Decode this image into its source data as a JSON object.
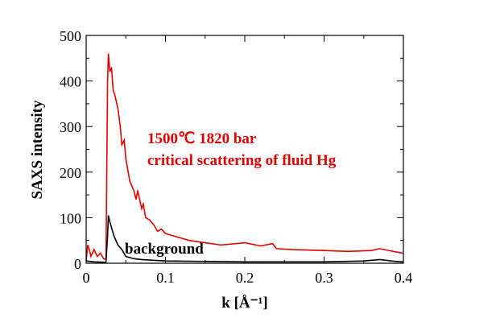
{
  "chart_data": {
    "type": "line",
    "title": "",
    "xlabel": "k [Å⁻¹]",
    "ylabel": "SAXS intensity",
    "xlim": [
      0,
      0.4
    ],
    "ylim": [
      0,
      500
    ],
    "xticks": [
      "0",
      "0.1",
      "0.2",
      "0.3",
      "0.4"
    ],
    "yticks": [
      "0",
      "100",
      "200",
      "300",
      "400",
      "500"
    ],
    "grid": false,
    "annotations": [
      {
        "text": "1500℃ 1820 bar",
        "color": "#e00000"
      },
      {
        "text": "critical scattering of fluid Hg",
        "color": "#e00000"
      },
      {
        "text": "background",
        "color": "#000000"
      }
    ],
    "series": [
      {
        "color": "#e00000",
        "x": [
          0,
          0.002,
          0.004,
          0.006,
          0.01,
          0.014,
          0.018,
          0.022,
          0.025,
          0.026,
          0.027,
          0.028,
          0.03,
          0.032,
          0.034,
          0.036,
          0.04,
          0.043,
          0.045,
          0.048,
          0.05,
          0.055,
          0.06,
          0.063,
          0.065,
          0.068,
          0.07,
          0.072,
          0.075,
          0.08,
          0.085,
          0.09,
          0.095,
          0.1,
          0.11,
          0.12,
          0.13,
          0.15,
          0.17,
          0.2,
          0.22,
          0.235,
          0.24,
          0.26,
          0.3,
          0.33,
          0.36,
          0.37,
          0.39,
          0.4
        ],
        "y": [
          5,
          40,
          30,
          15,
          30,
          15,
          22,
          10,
          8,
          200,
          400,
          460,
          420,
          430,
          380,
          370,
          340,
          300,
          260,
          270,
          230,
          180,
          160,
          140,
          160,
          135,
          120,
          130,
          100,
          95,
          85,
          70,
          75,
          65,
          60,
          55,
          50,
          45,
          40,
          45,
          38,
          43,
          32,
          30,
          28,
          26,
          28,
          32,
          25,
          22
        ]
      },
      {
        "color": "#000000",
        "x": [
          0,
          0.01,
          0.025,
          0.027,
          0.028,
          0.03,
          0.035,
          0.04,
          0.045,
          0.05,
          0.06,
          0.07,
          0.1,
          0.2,
          0.3,
          0.35,
          0.37,
          0.39,
          0.4
        ],
        "y": [
          5,
          3,
          2,
          60,
          105,
          90,
          60,
          40,
          30,
          15,
          10,
          8,
          5,
          3,
          3,
          5,
          8,
          4,
          3
        ]
      }
    ]
  }
}
